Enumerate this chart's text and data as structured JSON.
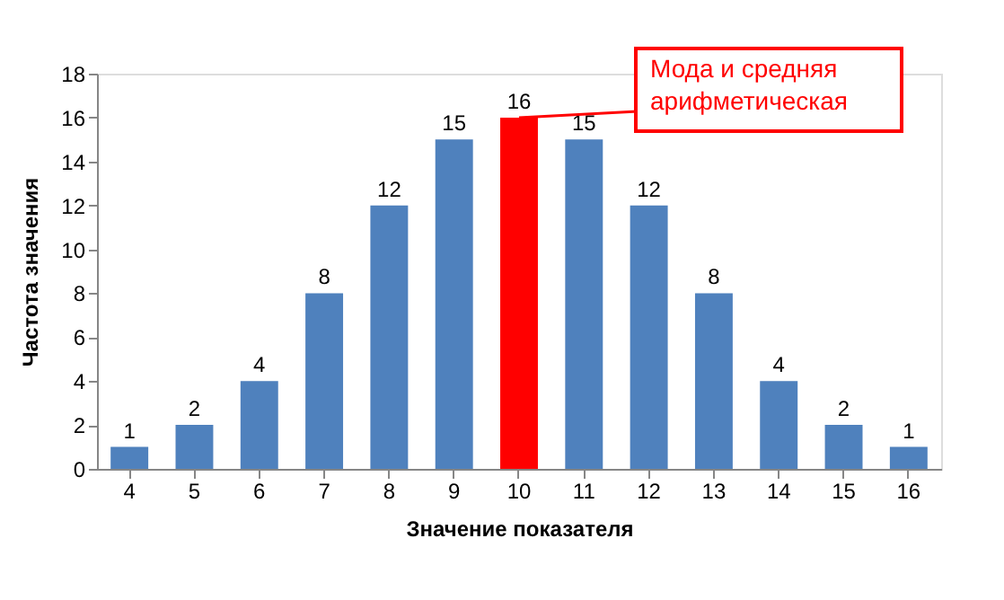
{
  "chart_data": {
    "type": "bar",
    "categories": [
      "4",
      "5",
      "6",
      "7",
      "8",
      "9",
      "10",
      "11",
      "12",
      "13",
      "14",
      "15",
      "16"
    ],
    "values": [
      1,
      2,
      4,
      8,
      12,
      15,
      16,
      15,
      12,
      8,
      4,
      2,
      1
    ],
    "colors": [
      "#4f81bd",
      "#4f81bd",
      "#4f81bd",
      "#4f81bd",
      "#4f81bd",
      "#4f81bd",
      "#ff0000",
      "#4f81bd",
      "#4f81bd",
      "#4f81bd",
      "#4f81bd",
      "#4f81bd",
      "#4f81bd"
    ],
    "xlabel": "Значение показателя",
    "ylabel": "Частота значения",
    "ylim": [
      0,
      18
    ],
    "yticks": [
      0,
      2,
      4,
      6,
      8,
      10,
      12,
      14,
      16,
      18
    ],
    "data_labels": true,
    "grid": false,
    "annotations": [
      {
        "text": "Мода и средняя арифметическая",
        "x": "10",
        "y": 16
      }
    ]
  }
}
